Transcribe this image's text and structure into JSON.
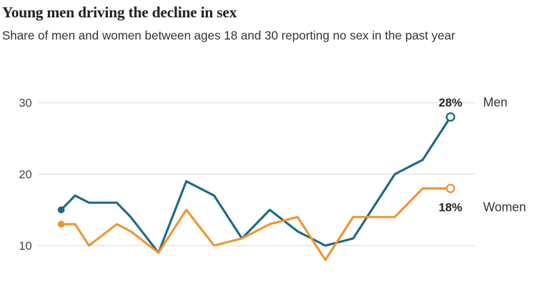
{
  "title": "Young men driving the decline in sex",
  "subtitle": "Share of men and women between ages 18 and 30 reporting no sex in the past year",
  "colors": {
    "men": "#1a6a84",
    "women": "#f0952e",
    "grid": "#d6d6d6"
  },
  "chart_data": {
    "type": "line",
    "title": "Young men driving the decline in sex",
    "subtitle": "Share of men and women between ages 18 and 30 reporting no sex in the past year",
    "ylim": [
      5,
      32
    ],
    "yticks": [
      10,
      20,
      30
    ],
    "ytick_labels": [
      "10",
      "20",
      "30"
    ],
    "grid": true,
    "x": [
      0,
      1,
      2,
      3,
      4,
      5,
      6,
      7,
      8,
      9,
      10,
      11,
      12,
      13,
      14,
      15,
      16,
      17,
      18,
      19,
      20,
      21,
      22,
      23,
      24,
      25,
      26,
      27,
      28
    ],
    "series": [
      {
        "name": "Men",
        "end_label": "28%",
        "color": "#1a6a84",
        "points": [
          [
            0,
            15
          ],
          [
            1,
            17
          ],
          [
            2,
            16
          ],
          [
            4,
            16
          ],
          [
            5,
            14
          ],
          [
            7,
            9
          ],
          [
            9,
            19
          ],
          [
            11,
            17
          ],
          [
            13,
            11
          ],
          [
            15,
            15
          ],
          [
            17,
            12
          ],
          [
            19,
            10
          ],
          [
            21,
            11
          ],
          [
            24,
            20
          ],
          [
            26,
            22
          ],
          [
            28,
            28
          ]
        ]
      },
      {
        "name": "Women",
        "end_label": "18%",
        "color": "#f0952e",
        "points": [
          [
            0,
            13
          ],
          [
            1,
            13
          ],
          [
            2,
            10
          ],
          [
            4,
            13
          ],
          [
            5,
            12
          ],
          [
            7,
            9
          ],
          [
            9,
            15
          ],
          [
            11,
            10
          ],
          [
            13,
            11
          ],
          [
            15,
            13
          ],
          [
            17,
            14
          ],
          [
            19,
            8
          ],
          [
            21,
            14
          ],
          [
            24,
            14
          ],
          [
            26,
            18
          ],
          [
            28,
            18
          ]
        ]
      }
    ]
  }
}
